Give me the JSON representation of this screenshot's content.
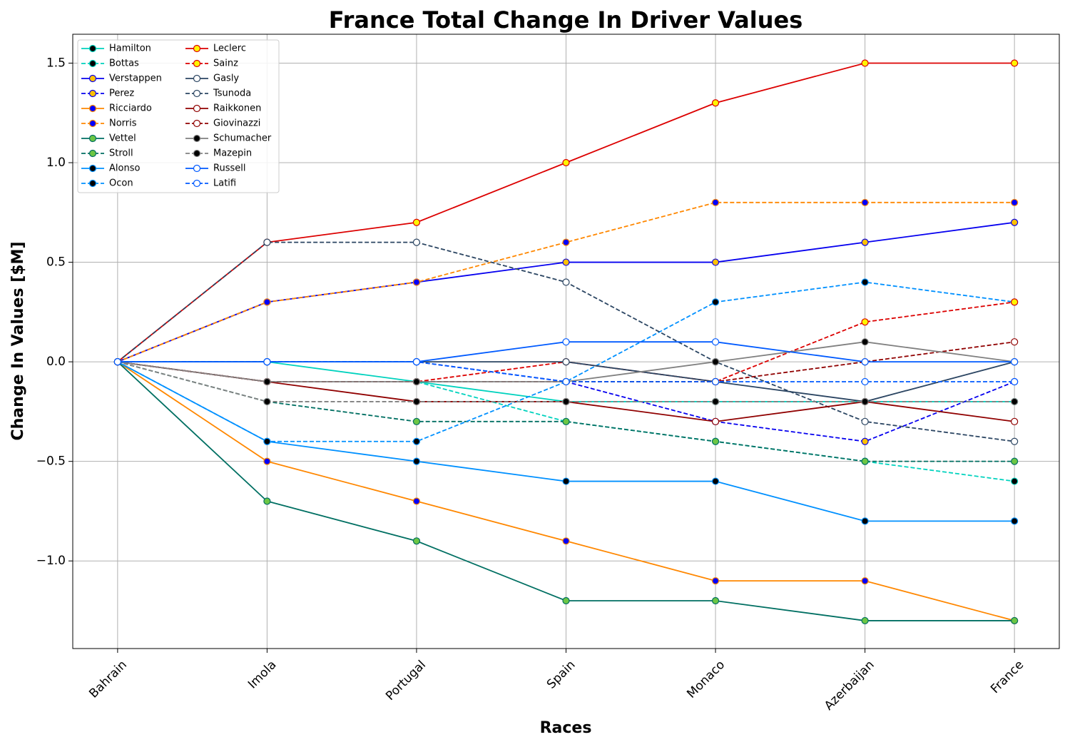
{
  "chart_data": {
    "type": "line",
    "title": "France Total Change In Driver Values",
    "x_label": "Races",
    "y_label": "Change In Values [$M]",
    "categories": [
      "Bahrain",
      "Imola",
      "Portugal",
      "Spain",
      "Monaco",
      "Azerbaijan",
      "France"
    ],
    "ylim": [
      -1.44,
      1.645
    ],
    "yticks": [
      {
        "value": -1,
        "label": "−1.0"
      },
      {
        "value": -0.5,
        "label": "−0.5"
      },
      {
        "value": 0,
        "label": "0.0"
      },
      0.5,
      {
        "value": 1,
        "label": "1.0"
      },
      1.5
    ],
    "grid": true,
    "legend_position": "upper-left",
    "legend_columns": 2,
    "series": [
      {
        "name": "Hamilton",
        "color": "#00d2be",
        "marker_color": "#000000",
        "dashed": false,
        "values": [
          0,
          0,
          -0.1,
          -0.2,
          -0.2,
          -0.2,
          -0.2
        ]
      },
      {
        "name": "Bottas",
        "color": "#00d2be",
        "marker_color": "#000000",
        "dashed": true,
        "values": [
          0,
          -0.1,
          -0.1,
          -0.3,
          -0.4,
          -0.5,
          -0.6
        ]
      },
      {
        "name": "Verstappen",
        "color": "#0600ef",
        "marker_color": "#ffc000",
        "dashed": false,
        "values": [
          0,
          0.3,
          0.4,
          0.5,
          0.5,
          0.6,
          0.7
        ]
      },
      {
        "name": "Perez",
        "color": "#0600ef",
        "marker_color": "#ffc000",
        "dashed": true,
        "values": [
          0,
          0,
          0,
          -0.1,
          -0.3,
          -0.4,
          -0.1
        ]
      },
      {
        "name": "Ricciardo",
        "color": "#ff8700",
        "marker_color": "#0000ff",
        "dashed": false,
        "values": [
          0,
          -0.5,
          -0.7,
          -0.9,
          -1.1,
          -1.1,
          -1.3
        ]
      },
      {
        "name": "Norris",
        "color": "#ff8700",
        "marker_color": "#0000ff",
        "dashed": true,
        "values": [
          0,
          0.3,
          0.4,
          0.6,
          0.8,
          0.8,
          0.8
        ]
      },
      {
        "name": "Vettel",
        "color": "#006f62",
        "marker_color": "#6cc644",
        "dashed": false,
        "values": [
          0,
          -0.7,
          -0.9,
          -1.2,
          -1.2,
          -1.3,
          -1.3
        ]
      },
      {
        "name": "Stroll",
        "color": "#006f62",
        "marker_color": "#6cc644",
        "dashed": true,
        "values": [
          0,
          -0.2,
          -0.3,
          -0.3,
          -0.4,
          -0.5,
          -0.5
        ]
      },
      {
        "name": "Alonso",
        "color": "#0090ff",
        "marker_color": "#000000",
        "dashed": false,
        "values": [
          0,
          -0.4,
          -0.5,
          -0.6,
          -0.6,
          -0.8,
          -0.8
        ]
      },
      {
        "name": "Ocon",
        "color": "#0090ff",
        "marker_color": "#000000",
        "dashed": true,
        "values": [
          0,
          -0.4,
          -0.4,
          -0.1,
          0.3,
          0.4,
          0.3
        ]
      },
      {
        "name": "Leclerc",
        "color": "#dc0000",
        "marker_color": "#fff500",
        "dashed": false,
        "values": [
          0,
          0.6,
          0.7,
          1.0,
          1.3,
          1.5,
          1.5
        ]
      },
      {
        "name": "Sainz",
        "color": "#dc0000",
        "marker_color": "#fff500",
        "dashed": true,
        "values": [
          0,
          -0.1,
          -0.1,
          0,
          -0.1,
          0.2,
          0.3
        ]
      },
      {
        "name": "Gasly",
        "color": "#2b4562",
        "marker_color": "#ffffff",
        "dashed": false,
        "values": [
          0,
          0,
          0,
          0,
          -0.1,
          -0.2,
          0
        ]
      },
      {
        "name": "Tsunoda",
        "color": "#2b4562",
        "marker_color": "#ffffff",
        "dashed": true,
        "values": [
          0,
          0.6,
          0.6,
          0.4,
          0,
          -0.3,
          -0.4
        ]
      },
      {
        "name": "Raikkonen",
        "color": "#900000",
        "marker_color": "#ffffff",
        "dashed": false,
        "values": [
          0,
          -0.1,
          -0.2,
          -0.2,
          -0.3,
          -0.2,
          -0.3
        ]
      },
      {
        "name": "Giovinazzi",
        "color": "#900000",
        "marker_color": "#ffffff",
        "dashed": true,
        "values": [
          0,
          -0.1,
          -0.1,
          -0.1,
          -0.1,
          0,
          0.1
        ]
      },
      {
        "name": "Schumacher",
        "color": "#808080",
        "marker_color": "#000000",
        "dashed": false,
        "values": [
          0,
          -0.1,
          -0.1,
          -0.1,
          0,
          0.1,
          0
        ]
      },
      {
        "name": "Mazepin",
        "color": "#808080",
        "marker_color": "#000000",
        "dashed": true,
        "values": [
          0,
          -0.2,
          -0.2,
          -0.2,
          -0.2,
          -0.2,
          -0.2
        ]
      },
      {
        "name": "Russell",
        "color": "#005aff",
        "marker_color": "#ffffff",
        "dashed": false,
        "values": [
          0,
          0,
          0,
          0.1,
          0.1,
          0,
          0
        ]
      },
      {
        "name": "Latifi",
        "color": "#005aff",
        "marker_color": "#ffffff",
        "dashed": true,
        "values": [
          0,
          0,
          0,
          -0.1,
          -0.1,
          -0.1,
          -0.1
        ]
      }
    ]
  }
}
